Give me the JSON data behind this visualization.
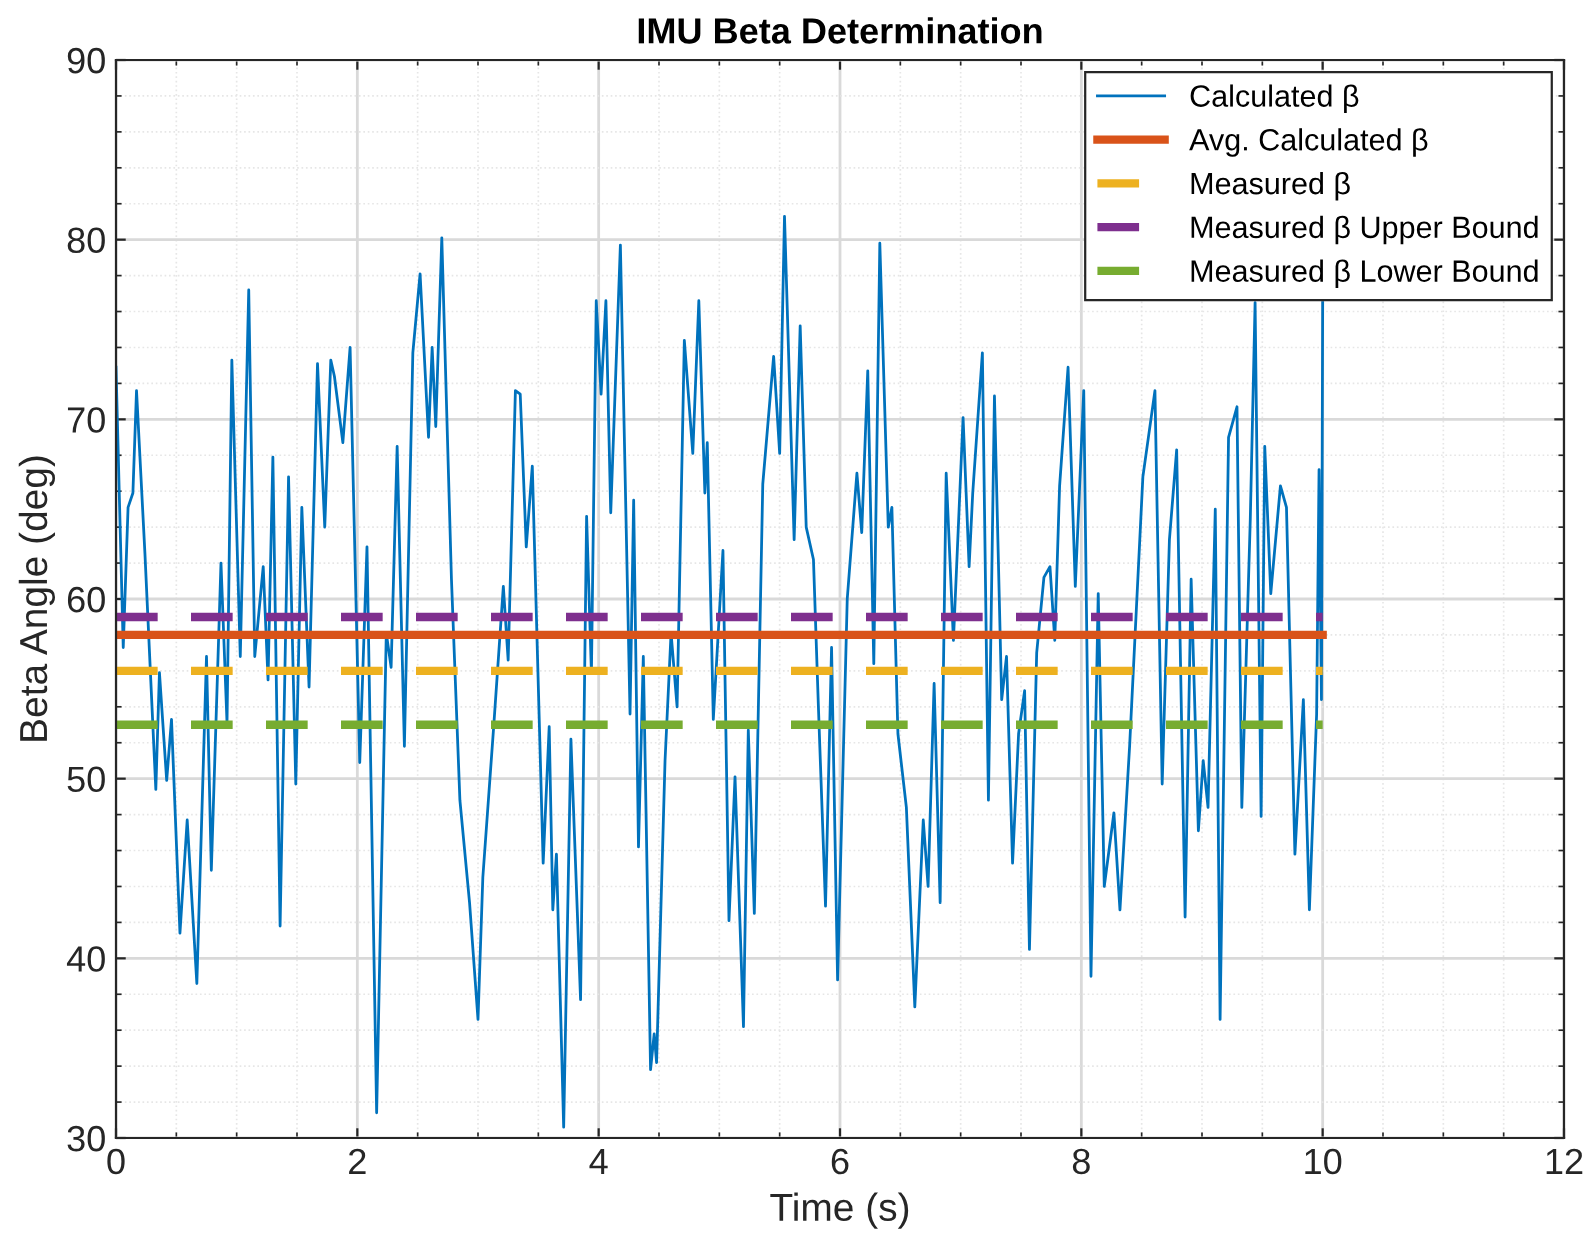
{
  "chart_data": {
    "type": "line",
    "title": "IMU Beta Determination",
    "xlabel": "Time (s)",
    "ylabel": "Beta Angle (deg)",
    "xlim": [
      0,
      12
    ],
    "xticks": [
      0,
      2,
      4,
      6,
      8,
      10,
      12
    ],
    "ylim": [
      30,
      90
    ],
    "yticks": [
      30,
      40,
      50,
      60,
      70,
      80,
      90
    ],
    "grid": true,
    "legend": "top right",
    "marker": "none",
    "series": [
      {
        "name": "Calculated β",
        "color": "#0072bd",
        "line_style": "solid",
        "x": [
          0,
          0.06,
          0.1,
          0.14,
          0.17,
          0.24,
          0.33,
          0.36,
          0.42,
          0.46,
          0.53,
          0.59,
          0.67,
          0.75,
          0.79,
          0.87,
          0.92,
          0.96,
          1.03,
          1.1,
          1.15,
          1.22,
          1.26,
          1.3,
          1.36,
          1.43,
          1.49,
          1.54,
          1.6,
          1.67,
          1.73,
          1.78,
          1.81,
          1.88,
          1.94,
          2.02,
          2.08,
          2.16,
          2.24,
          2.28,
          2.33,
          2.39,
          2.46,
          2.52,
          2.59,
          2.62,
          2.65,
          2.7,
          2.78,
          2.85,
          2.93,
          3.0,
          3.04,
          3.13,
          3.21,
          3.25,
          3.31,
          3.35,
          3.4,
          3.45,
          3.54,
          3.59,
          3.62,
          3.65,
          3.71,
          3.77,
          3.85,
          3.9,
          3.94,
          3.98,
          4.02,
          4.06,
          4.1,
          4.18,
          4.26,
          4.29,
          4.33,
          4.37,
          4.43,
          4.46,
          4.48,
          4.55,
          4.6,
          4.65,
          4.71,
          4.78,
          4.83,
          4.88,
          4.9,
          4.95,
          5.03,
          5.08,
          5.13,
          5.2,
          5.24,
          5.29,
          5.36,
          5.45,
          5.5,
          5.54,
          5.62,
          5.67,
          5.72,
          5.78,
          5.82,
          5.88,
          5.93,
          5.98,
          6.06,
          6.14,
          6.18,
          6.23,
          6.28,
          6.33,
          6.4,
          6.43,
          6.48,
          6.55,
          6.62,
          6.69,
          6.73,
          6.78,
          6.83,
          6.88,
          6.94,
          7.02,
          7.07,
          7.1,
          7.18,
          7.23,
          7.28,
          7.34,
          7.38,
          7.43,
          7.48,
          7.53,
          7.57,
          7.63,
          7.69,
          7.74,
          7.78,
          7.82,
          7.89,
          7.95,
          8.02,
          8.08,
          8.14,
          8.19,
          8.27,
          8.32,
          8.4,
          8.51,
          8.61,
          8.67,
          8.73,
          8.79,
          8.86,
          8.91,
          8.97,
          9.01,
          9.05,
          9.11,
          9.15,
          9.22,
          9.29,
          9.33,
          9.4,
          9.44,
          9.49,
          9.52,
          9.57,
          9.65,
          9.7,
          9.77,
          9.84,
          9.89,
          9.95,
          9.97,
          9.99,
          10.0
        ],
        "values": [
          72.9,
          57.3,
          65.1,
          65.9,
          71.6,
          62.5,
          49.4,
          55.9,
          49.9,
          53.3,
          41.4,
          47.7,
          38.6,
          56.8,
          44.9,
          62.0,
          53.1,
          73.3,
          56.8,
          77.2,
          56.8,
          61.8,
          55.5,
          67.9,
          41.8,
          66.8,
          49.7,
          65.1,
          55.1,
          73.1,
          64.0,
          73.3,
          72.4,
          68.7,
          74.0,
          50.9,
          62.9,
          31.4,
          58.1,
          56.2,
          68.5,
          51.8,
          73.7,
          78.1,
          69.0,
          74.0,
          69.6,
          80.1,
          61.1,
          48.8,
          43.1,
          36.6,
          44.5,
          52.9,
          60.7,
          56.6,
          71.6,
          71.4,
          62.9,
          67.4,
          45.3,
          52.9,
          42.7,
          45.8,
          30.6,
          52.2,
          37.7,
          64.6,
          55.9,
          76.6,
          71.4,
          76.6,
          64.8,
          79.7,
          53.6,
          65.5,
          46.2,
          56.8,
          33.8,
          35.8,
          34.2,
          51.0,
          58.1,
          54.0,
          74.4,
          68.1,
          76.6,
          65.9,
          68.7,
          53.3,
          62.7,
          42.1,
          50.1,
          36.2,
          52.7,
          42.5,
          66.4,
          73.5,
          68.1,
          81.3,
          63.3,
          75.2,
          64.0,
          62.2,
          54.2,
          42.9,
          57.3,
          38.8,
          60.0,
          67.0,
          63.7,
          72.7,
          56.4,
          79.8,
          64.0,
          65.1,
          52.5,
          48.4,
          37.3,
          47.7,
          44.0,
          55.3,
          43.1,
          67.0,
          57.7,
          70.1,
          61.8,
          65.9,
          73.7,
          48.8,
          71.3,
          54.4,
          56.8,
          45.3,
          52.5,
          54.9,
          40.5,
          57.0,
          61.2,
          61.8,
          57.7,
          66.3,
          72.9,
          60.7,
          71.6,
          39.0,
          60.3,
          44.0,
          48.1,
          42.7,
          51.8,
          66.8,
          71.6,
          49.7,
          63.3,
          68.3,
          42.3,
          61.1,
          47.1,
          51.0,
          48.4,
          65.0,
          36.6,
          69.0,
          70.7,
          48.4,
          64.4,
          76.5,
          47.9,
          68.5,
          60.3,
          66.3,
          65.1,
          45.8,
          54.4,
          42.7,
          53.6,
          67.2,
          54.4,
          76.5
        ]
      },
      {
        "name": "Avg. Calculated β",
        "color": "#d95319",
        "line_style": "solid",
        "x": [
          0,
          10
        ],
        "values": [
          58,
          58
        ]
      },
      {
        "name": "Measured β",
        "color": "#edb120",
        "line_style": "dashed",
        "x": [
          0,
          10
        ],
        "values": [
          56,
          56
        ]
      },
      {
        "name": "Measured β Upper Bound",
        "color": "#7e2f8e",
        "line_style": "dashed",
        "x": [
          0,
          10
        ],
        "values": [
          59,
          59
        ]
      },
      {
        "name": "Measured β Lower Bound",
        "color": "#77ac30",
        "line_style": "dashed",
        "x": [
          0,
          10
        ],
        "values": [
          53,
          53
        ]
      }
    ]
  }
}
